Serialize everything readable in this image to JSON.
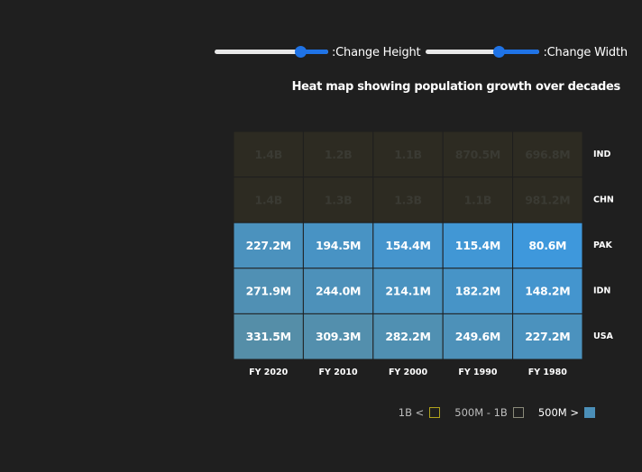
{
  "controls": {
    "height_slider": {
      "label": ":Change Height",
      "value": 0.78
    },
    "width_slider": {
      "label": ":Change Width",
      "value": 0.65
    }
  },
  "legend": {
    "items": [
      {
        "label": "1B <",
        "color": "#b0a21c",
        "style": "outline"
      },
      {
        "label": "500M - 1B",
        "color": "#8a8a7a",
        "style": "outline"
      },
      {
        "label": "500M >",
        "color": "#4b8fb8",
        "style": "filled"
      }
    ]
  },
  "colors": {
    "dark_cell": "#2d2b22",
    "dark_text": "#3a3a33",
    "light_text": "#ffffff",
    "low_light": "#3e98dc",
    "high_light": "#558ea8"
  },
  "chart_data": {
    "type": "heatmap",
    "title": "Heat map showing population growth over decades",
    "x_categories": [
      "FY 2020",
      "FY 2010",
      "FY 2000",
      "FY 1990",
      "FY 1980"
    ],
    "y_categories": [
      "IND",
      "CHN",
      "PAK",
      "IDN",
      "USA"
    ],
    "values": [
      [
        1400000000,
        1200000000,
        1100000000,
        870500000,
        696800000
      ],
      [
        1400000000,
        1300000000,
        1300000000,
        1100000000,
        981200000
      ],
      [
        227200000,
        194500000,
        154400000,
        115400000,
        80600000
      ],
      [
        271900000,
        244000000,
        214100000,
        182200000,
        148200000
      ],
      [
        331500000,
        309300000,
        282200000,
        249600000,
        227200000
      ]
    ],
    "labels": [
      [
        "1.4B",
        "1.2B",
        "1.1B",
        "870.5M",
        "696.8M"
      ],
      [
        "1.4B",
        "1.3B",
        "1.3B",
        "1.1B",
        "981.2M"
      ],
      [
        "227.2M",
        "194.5M",
        "154.4M",
        "115.4M",
        "80.6M"
      ],
      [
        "271.9M",
        "244.0M",
        "214.1M",
        "182.2M",
        "148.2M"
      ],
      [
        "331.5M",
        "309.3M",
        "282.2M",
        "249.6M",
        "227.2M"
      ]
    ],
    "color_ranges": [
      {
        "label": "1B <",
        "min": 1000000000
      },
      {
        "label": "500M - 1B",
        "min": 500000000,
        "max": 1000000000
      },
      {
        "label": "500M >",
        "max": 500000000
      }
    ],
    "legend_position": "bottom-right"
  }
}
